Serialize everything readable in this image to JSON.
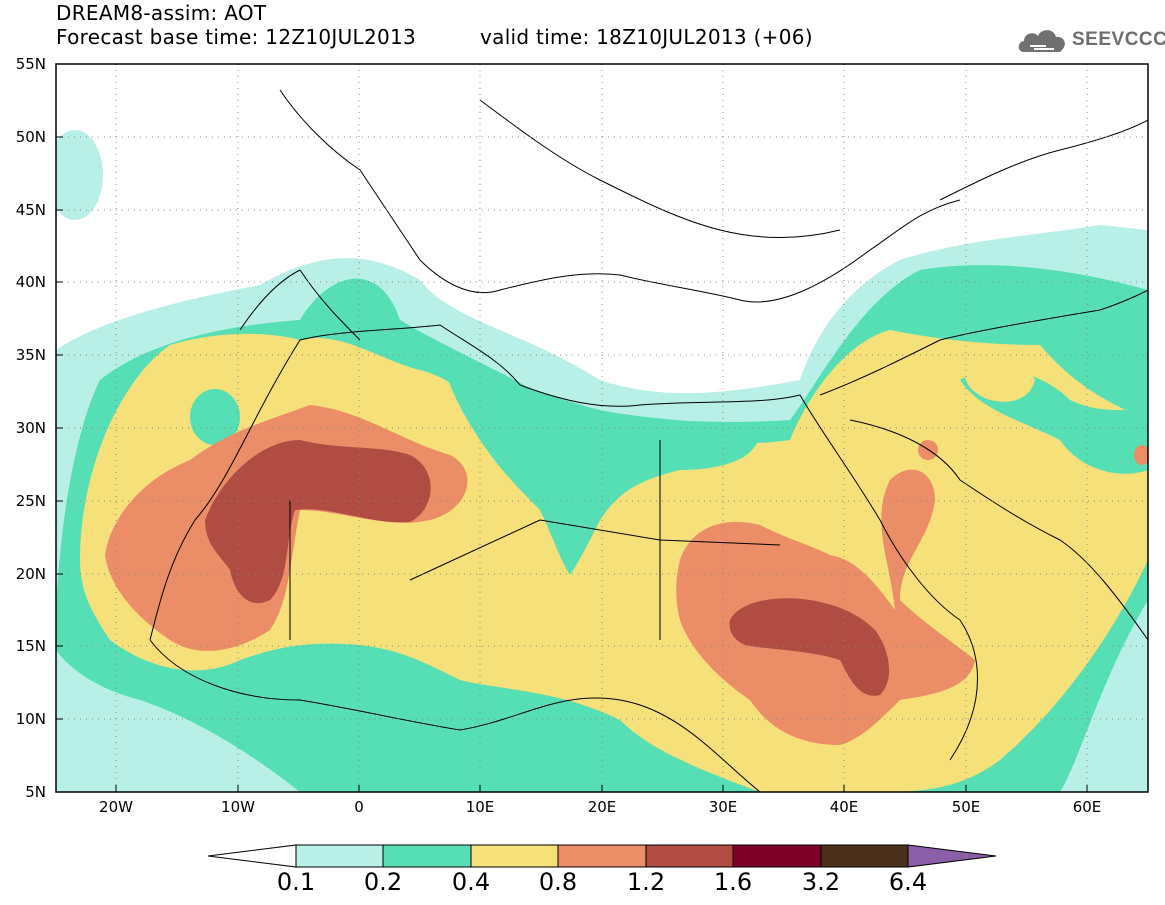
{
  "header": {
    "title": "DREAM8-assim: AOT",
    "base_time": "Forecast base time: 12Z10JUL2013",
    "valid_time": "valid time: 18Z10JUL2013 (+06)",
    "logo_text": "SEEVCCC"
  },
  "map": {
    "lon_range": [
      -25,
      65
    ],
    "lat_range": [
      5,
      55
    ],
    "lat_ticks": [
      "55N",
      "50N",
      "45N",
      "40N",
      "35N",
      "30N",
      "25N",
      "20N",
      "15N",
      "10N",
      "5N"
    ],
    "lon_ticks": [
      "20W",
      "10W",
      "0",
      "10E",
      "20E",
      "30E",
      "40E",
      "50E",
      "60E"
    ],
    "grid": "dotted"
  },
  "colorbar": {
    "labels": [
      "0.1",
      "0.2",
      "0.4",
      "0.8",
      "1.2",
      "1.6",
      "3.2",
      "6.4"
    ],
    "colors": [
      "#ffffff",
      "#b8efe6",
      "#56dfb4",
      "#f5e07a",
      "#eb8d67",
      "#b14c43",
      "#7d0028",
      "#4a2f1a",
      "#8a5fa8"
    ]
  }
}
